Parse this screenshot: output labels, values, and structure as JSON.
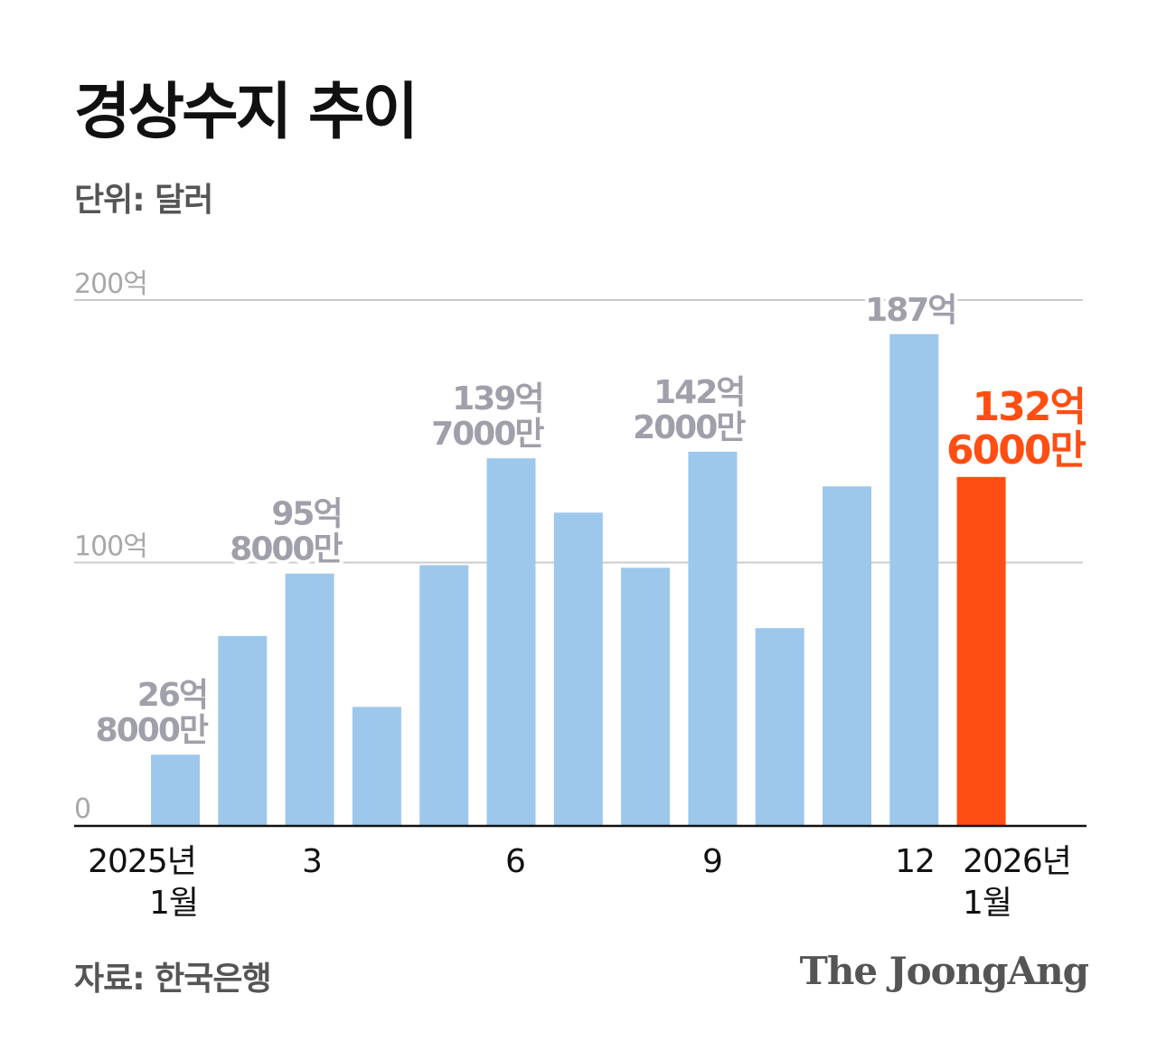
{
  "title": "경상수지 추이",
  "unit": "단위: 달러",
  "source": "자료: 한국은행",
  "logo": "The JoongAng",
  "colors": {
    "bar": "#9dc8ec",
    "highlight": "#ff4e14",
    "label": "#a0a0ab",
    "grid": "#cccccc"
  },
  "chart_data": {
    "type": "bar",
    "title": "경상수지 추이",
    "ylabel": "",
    "xlabel": "",
    "ylim": [
      0,
      200
    ],
    "y_unit": "억 달러",
    "grid": true,
    "yticks": [
      {
        "value": 0,
        "label": "0"
      },
      {
        "value": 100,
        "label": "100억"
      },
      {
        "value": 200,
        "label": "200억"
      }
    ],
    "categories": [
      "2025-01",
      "2025-02",
      "2025-03",
      "2025-04",
      "2025-05",
      "2025-06",
      "2025-07",
      "2025-08",
      "2025-09",
      "2025-10",
      "2025-11",
      "2025-12",
      "2026-01"
    ],
    "values": [
      26.8,
      72,
      95.8,
      45,
      99,
      139.7,
      119,
      98,
      142.2,
      75,
      129,
      187,
      132.6
    ],
    "xtick_labels": [
      {
        "index": 0,
        "lines": [
          "2025년",
          "1월"
        ]
      },
      {
        "index": 2,
        "lines": [
          "3"
        ]
      },
      {
        "index": 5,
        "lines": [
          "6"
        ]
      },
      {
        "index": 8,
        "lines": [
          "9"
        ]
      },
      {
        "index": 11,
        "lines": [
          "12"
        ]
      },
      {
        "index": 12,
        "lines": [
          "2026년",
          "1월"
        ]
      }
    ],
    "data_labels": [
      {
        "index": 0,
        "lines": [
          "26억",
          "8000만"
        ]
      },
      {
        "index": 2,
        "lines": [
          "95억",
          "8000만"
        ]
      },
      {
        "index": 5,
        "lines": [
          "139억",
          "7000만"
        ]
      },
      {
        "index": 8,
        "lines": [
          "142억",
          "2000만"
        ]
      },
      {
        "index": 11,
        "lines": [
          "187억"
        ]
      },
      {
        "index": 12,
        "lines": [
          "132억",
          "6000만"
        ]
      }
    ],
    "highlight_index": 12
  }
}
